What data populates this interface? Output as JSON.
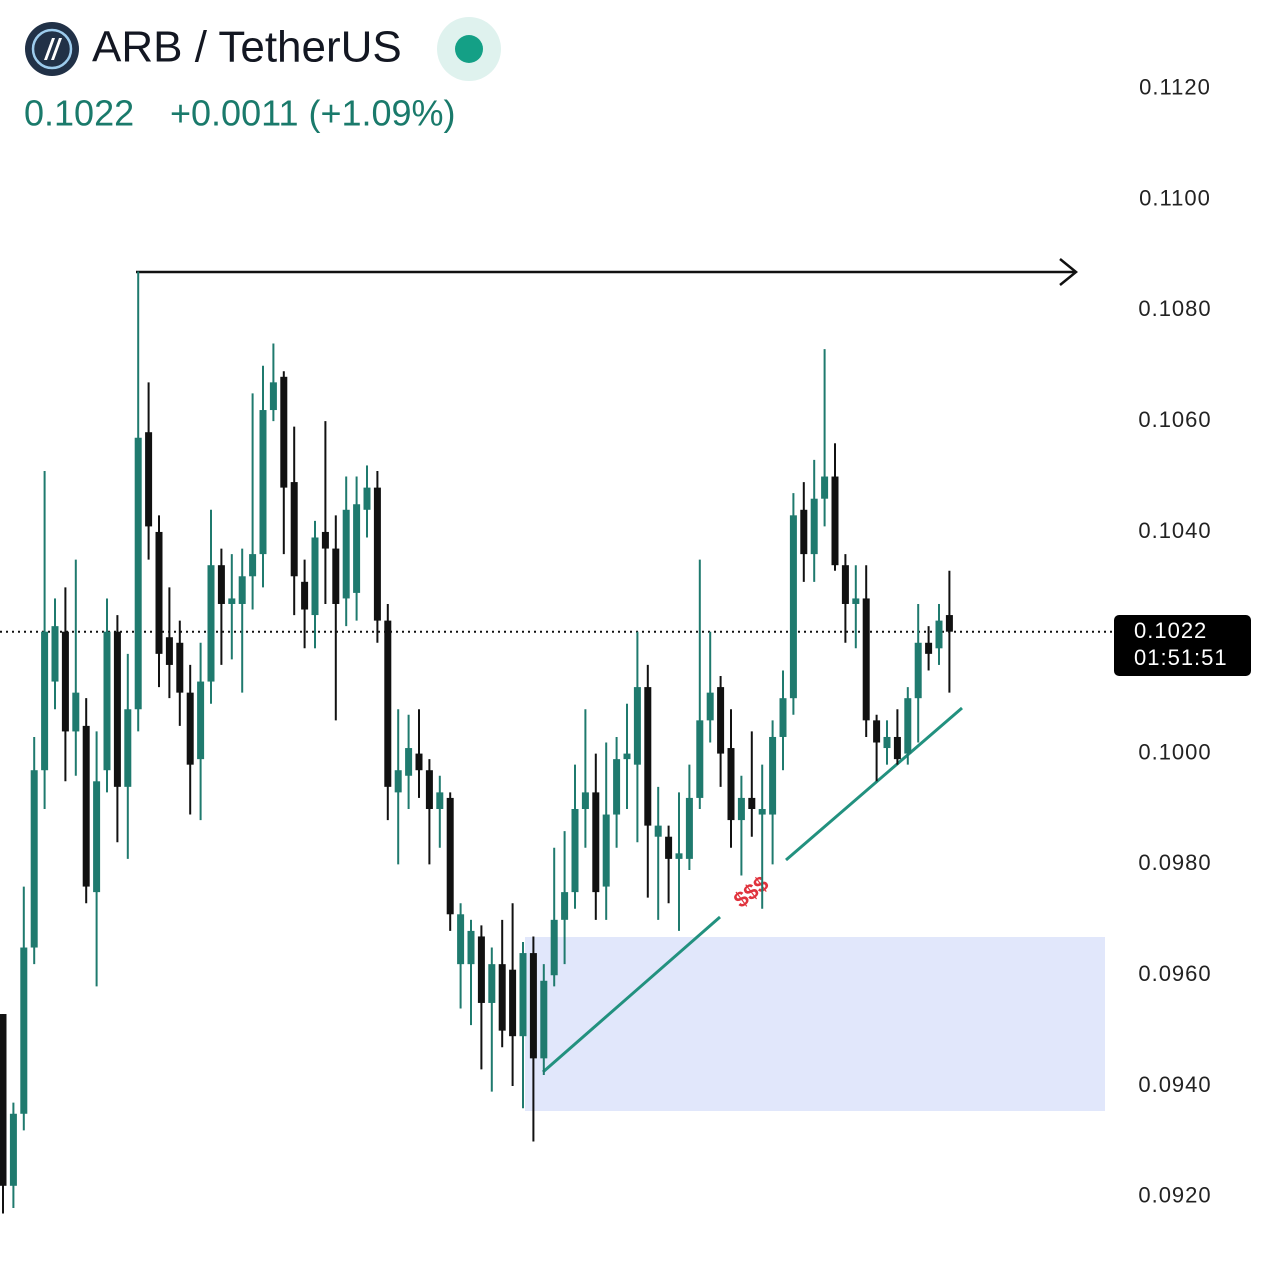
{
  "chart_data": {
    "type": "candlestick",
    "title": "ARB / TetherUS",
    "price": 0.1022,
    "change": "+0.0011 (+1.09%)",
    "countdown": "01:51:51",
    "annotation": "$$$",
    "up_color": "#1f7a6e",
    "down_color": "#111111",
    "ylim": [
      0.0905,
      0.1136
    ],
    "yticks": [
      {
        "value": 0.112,
        "label": "0.1120"
      },
      {
        "value": 0.11,
        "label": "0.1100"
      },
      {
        "value": 0.108,
        "label": "0.1080"
      },
      {
        "value": 0.106,
        "label": "0.1060"
      },
      {
        "value": 0.104,
        "label": "0.1040"
      },
      {
        "value": 0.1,
        "label": "0.1000"
      },
      {
        "value": 0.098,
        "label": "0.0980"
      },
      {
        "value": 0.096,
        "label": "0.0960"
      },
      {
        "value": 0.094,
        "label": "0.0940"
      },
      {
        "value": 0.092,
        "label": "0.0920"
      }
    ],
    "open": [
      0.0953,
      0.0922,
      0.0935,
      0.0965,
      0.0997,
      0.1013,
      0.1022,
      0.1004,
      0.1005,
      0.0975,
      0.0997,
      0.1022,
      0.0994,
      0.1008,
      0.1058,
      0.104,
      0.1021,
      0.102,
      0.1011,
      0.0999,
      0.1013,
      0.1034,
      0.1027,
      0.1027,
      0.1032,
      0.1036,
      0.1062,
      0.1068,
      0.1049,
      0.1031,
      0.1025,
      0.104,
      0.1037,
      0.1028,
      0.1029,
      0.1044,
      0.1048,
      0.1024,
      0.0993,
      0.0996,
      0.1,
      0.0997,
      0.099,
      0.0992,
      0.0962,
      0.0962,
      0.0967,
      0.0955,
      0.0962,
      0.0961,
      0.0949,
      0.0964,
      0.0945,
      0.096,
      0.097,
      0.0975,
      0.099,
      0.0993,
      0.0976,
      0.0989,
      0.0999,
      0.0998,
      0.1012,
      0.0985,
      0.0985,
      0.0981,
      0.0981,
      0.0992,
      0.1006,
      0.1012,
      0.1001,
      0.0988,
      0.0992,
      0.0989,
      0.0989,
      0.1003,
      0.101,
      0.1044,
      0.1036,
      0.1046,
      0.105,
      0.1034,
      0.1027,
      0.1028,
      0.1006,
      0.1001,
      0.1003,
      0.1,
      0.101,
      0.102,
      0.1019,
      0.1025
    ],
    "high": [
      0.0953,
      0.0937,
      0.0976,
      0.1003,
      0.1051,
      0.1028,
      0.103,
      0.1035,
      0.101,
      0.1004,
      0.1028,
      0.1025,
      0.1018,
      0.1087,
      0.1067,
      0.1043,
      0.103,
      0.1024,
      0.1016,
      0.102,
      0.1044,
      0.1037,
      0.1036,
      0.1037,
      0.1065,
      0.107,
      0.1074,
      0.1069,
      0.1059,
      0.1035,
      0.1042,
      0.106,
      0.1043,
      0.105,
      0.105,
      0.1052,
      0.1051,
      0.1027,
      0.1008,
      0.1007,
      0.1008,
      0.0999,
      0.0996,
      0.0993,
      0.0973,
      0.097,
      0.0969,
      0.0965,
      0.097,
      0.0973,
      0.0966,
      0.0967,
      0.0962,
      0.0983,
      0.0986,
      0.0998,
      0.1008,
      0.1,
      0.1002,
      0.1003,
      0.1009,
      0.1022,
      0.1016,
      0.0994,
      0.0987,
      0.0993,
      0.0998,
      0.1035,
      0.1022,
      0.1014,
      0.1008,
      0.0996,
      0.1004,
      0.0998,
      0.1006,
      0.1015,
      0.1047,
      0.1049,
      0.1053,
      0.1073,
      0.1056,
      0.1036,
      0.1034,
      0.1034,
      0.1007,
      0.1006,
      0.1008,
      0.1012,
      0.1027,
      0.1023,
      0.1027,
      0.1033
    ],
    "low": [
      0.0917,
      0.0918,
      0.0932,
      0.0962,
      0.099,
      0.1008,
      0.0995,
      0.0996,
      0.0973,
      0.0958,
      0.0993,
      0.0984,
      0.0981,
      0.1004,
      0.1035,
      0.1012,
      0.101,
      0.1005,
      0.0989,
      0.0988,
      0.1009,
      0.1016,
      0.1017,
      0.1011,
      0.1026,
      0.103,
      0.106,
      0.1036,
      0.1025,
      0.1019,
      0.1019,
      0.1027,
      0.1006,
      0.1023,
      0.1024,
      0.1039,
      0.102,
      0.0988,
      0.098,
      0.099,
      0.0992,
      0.098,
      0.0983,
      0.0968,
      0.0954,
      0.0951,
      0.0943,
      0.0939,
      0.0947,
      0.094,
      0.0936,
      0.093,
      0.0942,
      0.0958,
      0.0962,
      0.0972,
      0.0983,
      0.097,
      0.097,
      0.0983,
      0.099,
      0.0984,
      0.0974,
      0.097,
      0.0973,
      0.0968,
      0.0979,
      0.099,
      0.1002,
      0.0994,
      0.0983,
      0.0978,
      0.0985,
      0.0972,
      0.098,
      0.0997,
      0.1007,
      0.1031,
      0.1031,
      0.1041,
      0.1033,
      0.102,
      0.1019,
      0.1003,
      0.0995,
      0.0998,
      0.0998,
      0.0998,
      0.1002,
      0.1015,
      0.1016,
      0.1011
    ],
    "close": [
      0.0922,
      0.0935,
      0.0965,
      0.0997,
      0.1022,
      0.1023,
      0.1004,
      0.1011,
      0.0976,
      0.0995,
      0.1022,
      0.0994,
      0.1008,
      0.1057,
      0.1041,
      0.1018,
      0.1016,
      0.1011,
      0.0998,
      0.1013,
      0.1034,
      0.1027,
      0.1028,
      0.1032,
      0.1036,
      0.1062,
      0.1067,
      0.1048,
      0.1032,
      0.1026,
      0.1039,
      0.1037,
      0.1027,
      0.1044,
      0.1045,
      0.1048,
      0.1024,
      0.0994,
      0.0997,
      0.1001,
      0.0997,
      0.099,
      0.0993,
      0.0971,
      0.0971,
      0.0968,
      0.0955,
      0.0962,
      0.095,
      0.0949,
      0.0964,
      0.0945,
      0.0959,
      0.097,
      0.0975,
      0.099,
      0.0993,
      0.0975,
      0.0989,
      0.0999,
      0.1,
      0.1012,
      0.0987,
      0.0987,
      0.0981,
      0.0982,
      0.0992,
      0.1006,
      0.1011,
      0.1,
      0.0988,
      0.0992,
      0.099,
      0.099,
      0.1003,
      0.101,
      0.1043,
      0.1036,
      0.1046,
      0.105,
      0.1034,
      0.1027,
      0.1028,
      0.1006,
      0.1002,
      0.1003,
      0.0999,
      0.101,
      0.102,
      0.1018,
      0.1024,
      0.1022
    ]
  }
}
